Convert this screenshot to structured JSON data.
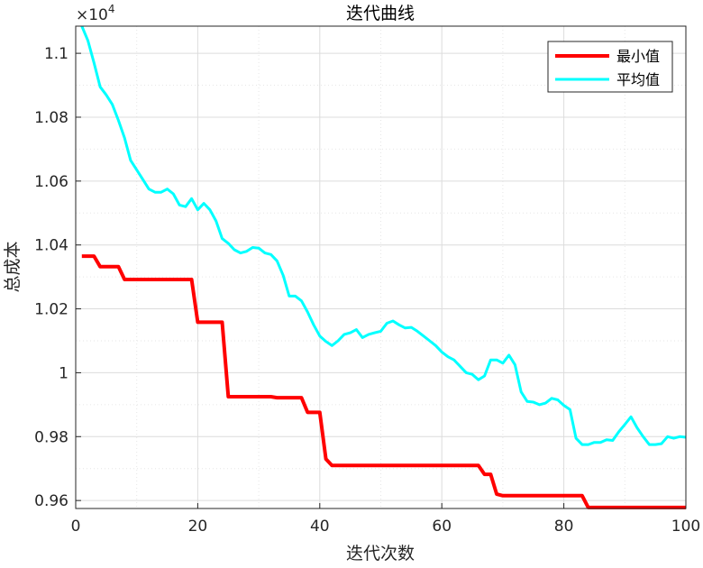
{
  "chart_data": {
    "type": "line",
    "title": "迭代曲线",
    "xlabel": "迭代次数",
    "ylabel": "总成本",
    "exponent_label": "×10",
    "exponent_power": "4",
    "xlim": [
      0,
      100
    ],
    "ylim": [
      0.9575,
      1.1085
    ],
    "xticks": [
      0,
      20,
      40,
      60,
      80,
      100
    ],
    "yticks": [
      0.96,
      0.98,
      1,
      1.02,
      1.04,
      1.06,
      1.08,
      1.1
    ],
    "ytick_labels": [
      "0.96",
      "0.98",
      "1",
      "1.02",
      "1.04",
      "1.06",
      "1.08",
      "1.1"
    ],
    "grid": true,
    "legend_position": "top-right",
    "series": [
      {
        "name": "最小值",
        "color": "#ff0000",
        "x": [
          1,
          3,
          4,
          7,
          8,
          19,
          20,
          24,
          25,
          32,
          33,
          37,
          38,
          40,
          41,
          42,
          66,
          67,
          68,
          69,
          70,
          83,
          84,
          100
        ],
        "y": [
          1.0365,
          1.0365,
          1.0332,
          1.0332,
          1.0292,
          1.0292,
          1.0158,
          1.0158,
          0.9925,
          0.9925,
          0.9922,
          0.9922,
          0.9876,
          0.9876,
          0.973,
          0.971,
          0.971,
          0.9682,
          0.9682,
          0.962,
          0.9615,
          0.9615,
          0.9578,
          0.9578
        ]
      },
      {
        "name": "平均值",
        "color": "#00ffff",
        "x": [
          1,
          2,
          3,
          4,
          5,
          6,
          7,
          8,
          9,
          10,
          11,
          12,
          13,
          14,
          15,
          16,
          17,
          18,
          19,
          20,
          21,
          22,
          23,
          24,
          25,
          26,
          27,
          28,
          29,
          30,
          31,
          32,
          33,
          34,
          35,
          36,
          37,
          38,
          39,
          40,
          41,
          42,
          43,
          44,
          45,
          46,
          47,
          48,
          49,
          50,
          51,
          52,
          53,
          54,
          55,
          56,
          57,
          58,
          59,
          60,
          61,
          62,
          63,
          64,
          65,
          66,
          67,
          68,
          69,
          70,
          71,
          72,
          73,
          74,
          75,
          76,
          77,
          78,
          79,
          80,
          81,
          82,
          83,
          84,
          85,
          86,
          87,
          88,
          89,
          90,
          91,
          92,
          93,
          94,
          95,
          96,
          97,
          98,
          99,
          100
        ],
        "y": [
          1.1085,
          1.104,
          1.097,
          1.0895,
          1.087,
          1.084,
          1.079,
          1.0735,
          1.0665,
          1.0635,
          1.0605,
          1.0575,
          1.0565,
          1.0565,
          1.0575,
          1.056,
          1.0525,
          1.052,
          1.0545,
          1.051,
          1.053,
          1.051,
          1.0475,
          1.042,
          1.0405,
          1.0385,
          1.0375,
          1.038,
          1.0392,
          1.039,
          1.0375,
          1.037,
          1.035,
          1.0305,
          1.024,
          1.024,
          1.0225,
          1.019,
          1.015,
          1.0115,
          1.0098,
          1.0085,
          1.01,
          1.012,
          1.0125,
          1.0135,
          1.011,
          1.012,
          1.0125,
          1.013,
          1.0155,
          1.0162,
          1.015,
          1.014,
          1.0142,
          1.013,
          1.0115,
          1.01,
          1.0085,
          1.0065,
          1.005,
          1.004,
          1.002,
          1.0,
          0.9995,
          0.9978,
          0.999,
          1.004,
          1.004,
          1.003,
          1.0055,
          1.0025,
          0.994,
          0.991,
          0.9908,
          0.99,
          0.9905,
          0.992,
          0.9915,
          0.9898,
          0.9885,
          0.9795,
          0.9775,
          0.9775,
          0.9782,
          0.9782,
          0.979,
          0.9788,
          0.9815,
          0.9838,
          0.9862,
          0.9828,
          0.98,
          0.9775,
          0.9775,
          0.9778,
          0.98,
          0.9795,
          0.98,
          0.9798
        ]
      }
    ]
  }
}
